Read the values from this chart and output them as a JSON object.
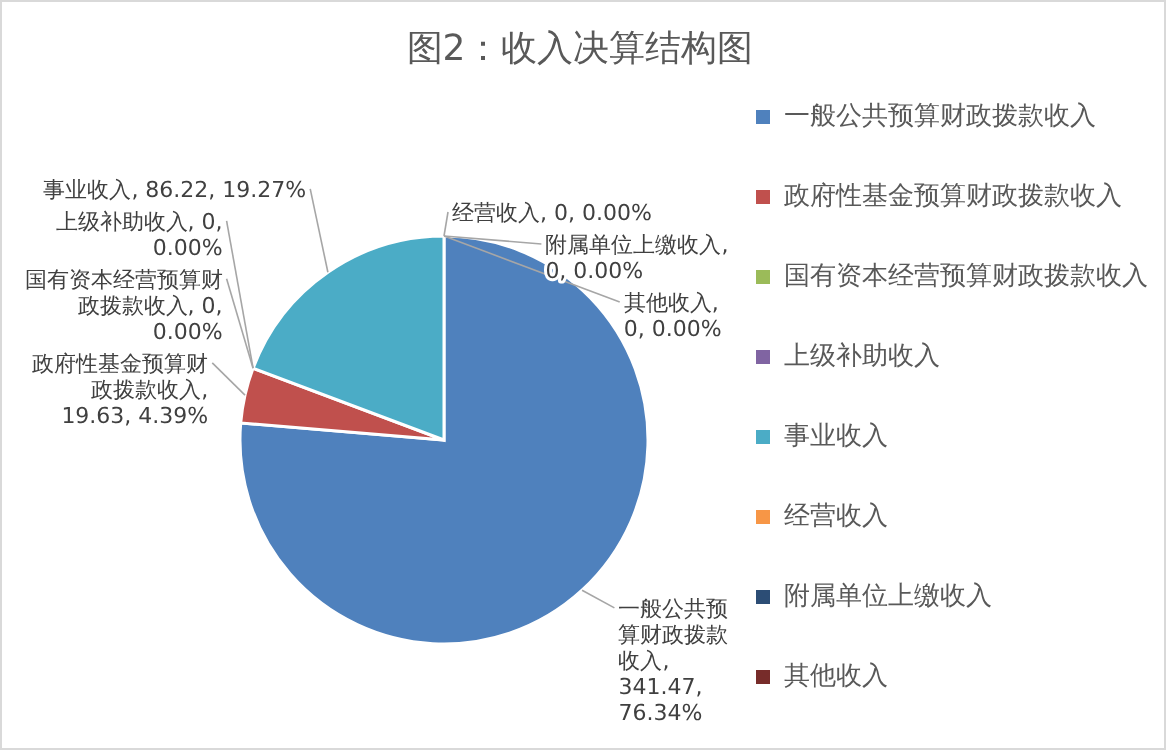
{
  "chart_data": {
    "type": "pie",
    "title": "图2：收入决算结构图",
    "categories": [
      "一般公共预算财政拨款收入",
      "政府性基金预算财政拨款收入",
      "国有资本经营预算财政拨款收入",
      "上级补助收入",
      "事业收入",
      "经营收入",
      "附属单位上缴收入",
      "其他收入"
    ],
    "values": [
      341.47,
      19.63,
      0,
      0,
      86.22,
      0,
      0,
      0
    ],
    "colors": [
      "#4f81bd",
      "#c0504d",
      "#9bbb59",
      "#8064a2",
      "#4bacc6",
      "#f79646",
      "#2c4d75",
      "#772c2a"
    ],
    "value_labels": [
      "一般公共预算财政拨款收入, 341.47, 76.34%",
      "政府性基金预算财政拨款收入, 19.63, 4.39%",
      "国有资本经营预算财政拨款收入, 0, 0.00%",
      "上级补助收入, 0, 0.00%",
      "事业收入, 86.22, 19.27%",
      "经营收入, 0, 0.00%",
      "附属单位上缴收入, 0, 0.00%",
      "其他收入, 0, 0.00%"
    ],
    "legend": "right"
  }
}
